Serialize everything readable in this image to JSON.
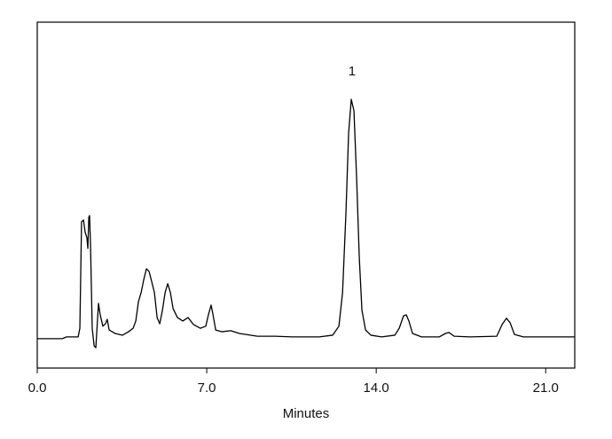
{
  "chart_data": {
    "type": "line",
    "xlabel": "Minutes",
    "xlim": [
      0,
      22.2
    ],
    "ylim": [
      0,
      100
    ],
    "xticks": [
      {
        "value": 0,
        "label": "0.0"
      },
      {
        "value": 7,
        "label": "7.0"
      },
      {
        "value": 14,
        "label": "14.0"
      },
      {
        "value": 21,
        "label": "21.0"
      }
    ],
    "annotations": [
      {
        "text": "1",
        "x": 13.0,
        "y": 85.6
      }
    ],
    "x": [
      0,
      1.03,
      1.21,
      1.69,
      1.76,
      1.83,
      1.91,
      1.98,
      2.05,
      2.09,
      2.13,
      2.16,
      2.2,
      2.27,
      2.35,
      2.42,
      2.49,
      2.53,
      2.6,
      2.71,
      2.82,
      2.89,
      2.97,
      3.22,
      3.52,
      3.77,
      3.96,
      4.07,
      4.18,
      4.29,
      4.4,
      4.51,
      4.62,
      4.73,
      4.84,
      4.95,
      5.06,
      5.17,
      5.28,
      5.39,
      5.5,
      5.61,
      5.79,
      6.01,
      6.23,
      6.45,
      6.74,
      6.96,
      7.07,
      7.18,
      7.26,
      7.37,
      7.62,
      7.99,
      8.35,
      9.09,
      9.82,
      10.55,
      11.65,
      12.2,
      12.46,
      12.61,
      12.75,
      12.86,
      12.97,
      13.08,
      13.19,
      13.3,
      13.41,
      13.56,
      13.78,
      14.22,
      14.77,
      14.95,
      15.13,
      15.24,
      15.35,
      15.5,
      15.87,
      16.6,
      16.86,
      17.0,
      17.22,
      17.88,
      18.98,
      19.2,
      19.38,
      19.53,
      19.71,
      20.08,
      22.2
    ],
    "series": [
      {
        "color": "#000000",
        "values": [
          8.5,
          8.5,
          9.0,
          9.0,
          11.5,
          42.3,
          42.8,
          39.2,
          37.7,
          34.6,
          43.6,
          44.1,
          35.9,
          11.5,
          6.4,
          5.9,
          14.1,
          18.7,
          15.4,
          12.1,
          12.8,
          14.1,
          11.0,
          10.0,
          9.5,
          10.5,
          11.5,
          13.6,
          19.2,
          21.8,
          25.6,
          28.7,
          27.9,
          24.9,
          21.8,
          14.6,
          12.8,
          16.7,
          21.8,
          24.4,
          21.8,
          17.2,
          14.6,
          13.6,
          14.6,
          12.6,
          11.5,
          12.1,
          15.4,
          18.2,
          15.4,
          11.0,
          10.5,
          10.8,
          10.0,
          9.2,
          9.2,
          9.0,
          9.0,
          9.5,
          12.1,
          21.8,
          44.9,
          67.9,
          77.7,
          74.4,
          55.1,
          32.1,
          16.7,
          11.0,
          9.5,
          9.0,
          9.5,
          11.5,
          15.1,
          15.4,
          13.6,
          10.0,
          9.0,
          9.0,
          10.0,
          10.3,
          9.2,
          9.0,
          9.2,
          12.6,
          14.4,
          13.1,
          9.7,
          9.0,
          9.0
        ]
      }
    ]
  }
}
